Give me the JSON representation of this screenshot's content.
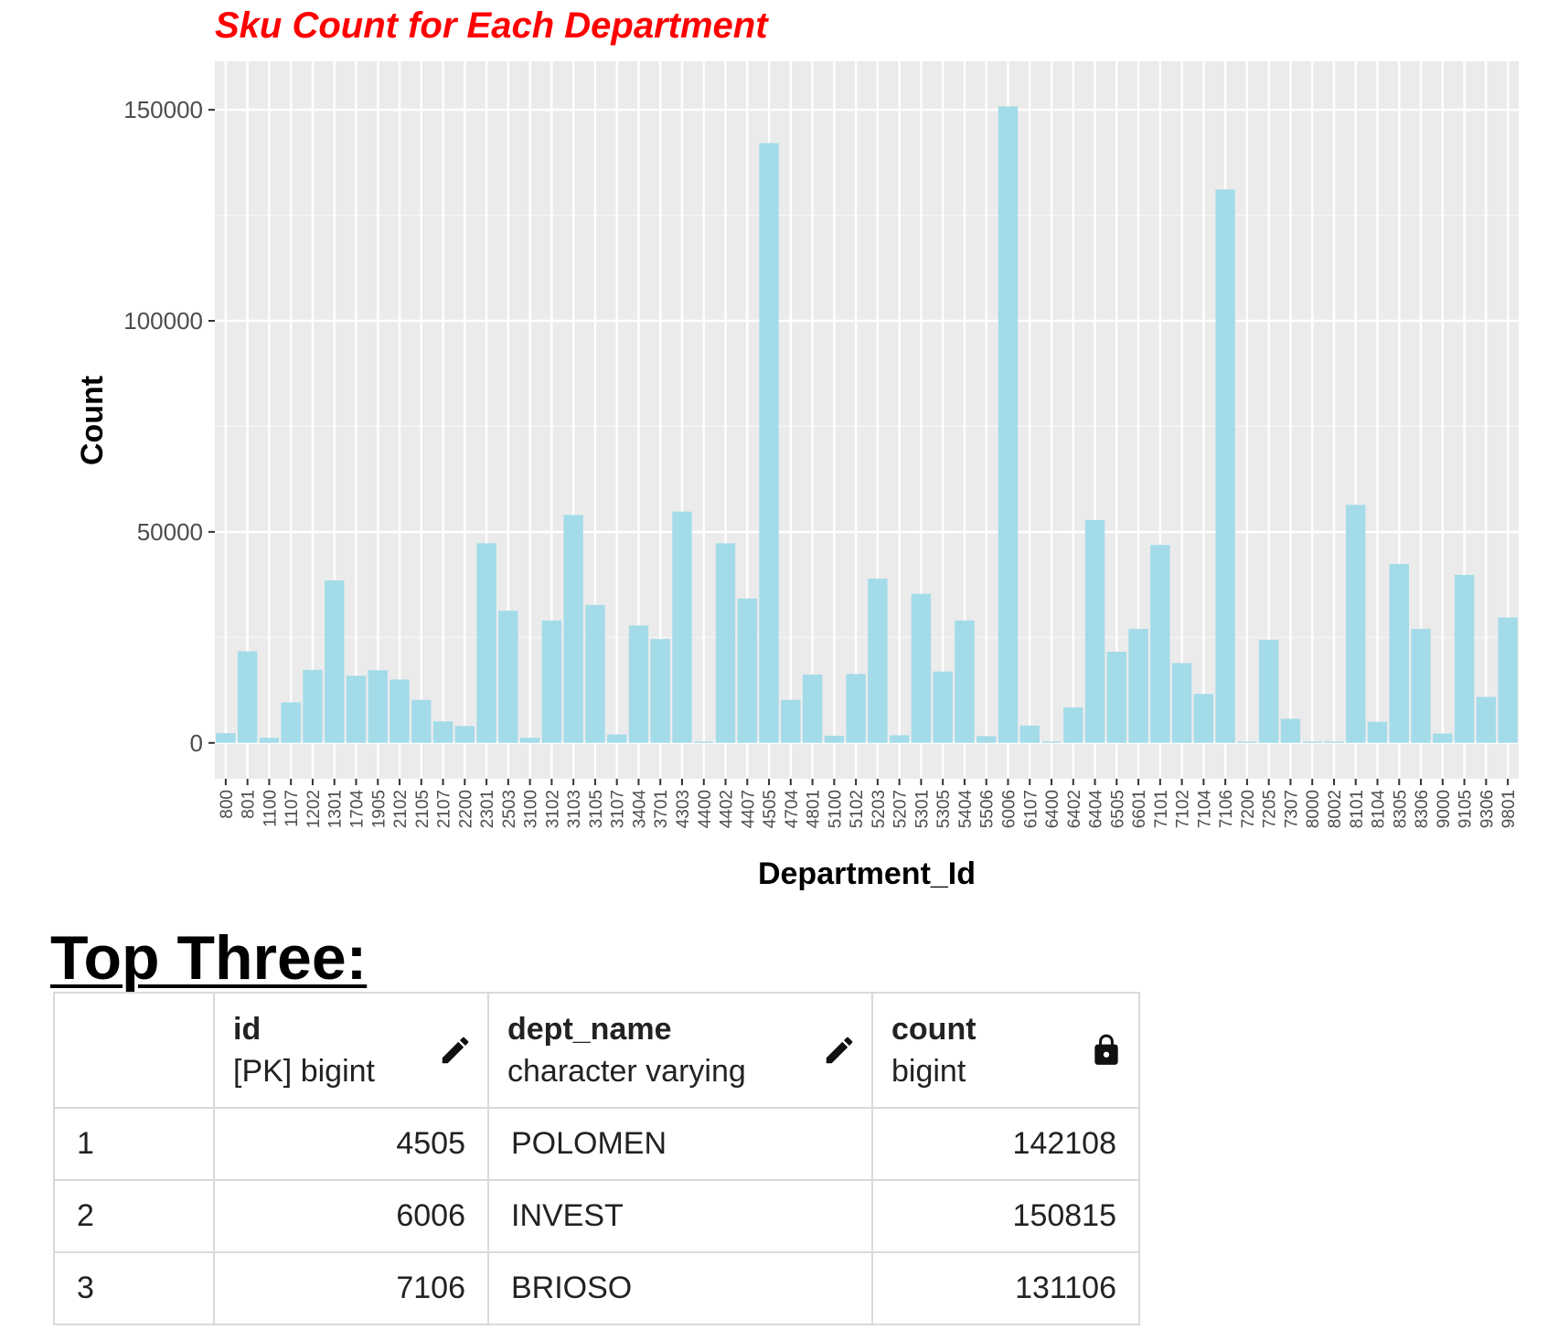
{
  "chart_data": {
    "type": "bar",
    "title": "Sku Count for Each Department",
    "xlabel": "Department_Id",
    "ylabel": "Count",
    "ylim": [
      -8500,
      161500
    ],
    "yticks": [
      0,
      50000,
      100000,
      150000
    ],
    "ytick_labels": [
      "0",
      "50000",
      "100000",
      "150000"
    ],
    "grid": true,
    "bar_color": "#a3dbe9",
    "panel_background": "#ebebeb",
    "categories": [
      "800",
      "801",
      "1100",
      "1107",
      "1202",
      "1301",
      "1704",
      "1905",
      "2102",
      "2105",
      "2107",
      "2200",
      "2301",
      "2503",
      "3100",
      "3102",
      "3103",
      "3105",
      "3107",
      "3404",
      "3701",
      "4303",
      "4400",
      "4402",
      "4407",
      "4505",
      "4704",
      "4801",
      "5100",
      "5102",
      "5203",
      "5207",
      "5301",
      "5305",
      "5404",
      "5506",
      "6006",
      "6107",
      "6400",
      "6402",
      "6404",
      "6505",
      "6601",
      "7101",
      "7102",
      "7104",
      "7106",
      "7200",
      "7205",
      "7307",
      "8000",
      "8002",
      "8101",
      "8104",
      "8305",
      "8306",
      "9000",
      "9105",
      "9306",
      "9801"
    ],
    "values": [
      2300,
      21700,
      1200,
      9600,
      17300,
      38500,
      15900,
      17200,
      15000,
      10200,
      5100,
      4000,
      47300,
      31300,
      1200,
      29000,
      54000,
      32700,
      2000,
      27800,
      24600,
      54800,
      300,
      47300,
      34200,
      142108,
      10200,
      16200,
      1700,
      16300,
      38900,
      1800,
      35300,
      16900,
      29000,
      1600,
      150815,
      4100,
      300,
      8400,
      52800,
      21600,
      27000,
      46900,
      18900,
      11600,
      131106,
      300,
      24400,
      5700,
      300,
      300,
      56400,
      5000,
      42400,
      27000,
      2200,
      39800,
      10900,
      29700
    ]
  },
  "table": {
    "heading": "Top Three:",
    "columns": [
      {
        "name": "id",
        "type": "[PK] bigint",
        "icon": "pencil-icon"
      },
      {
        "name": "dept_name",
        "type": "character varying",
        "icon": "pencil-icon"
      },
      {
        "name": "count",
        "type": "bigint",
        "icon": "lock-icon"
      }
    ],
    "rows": [
      {
        "num": "1",
        "id": "4505",
        "dept_name": "POLOMEN",
        "count": "142108"
      },
      {
        "num": "2",
        "id": "6006",
        "dept_name": "INVEST",
        "count": "150815"
      },
      {
        "num": "3",
        "id": "7106",
        "dept_name": "BRIOSO",
        "count": "131106"
      }
    ]
  }
}
